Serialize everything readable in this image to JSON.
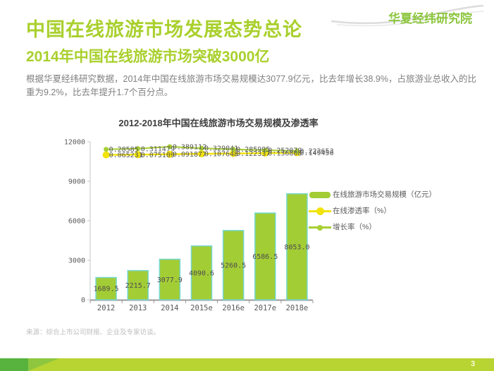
{
  "brand": {
    "logo_text": "华夏经纬研究院"
  },
  "header": {
    "title": "中国在线旅游市场发展态势总论",
    "subtitle": "2014年中国在线旅游市场突破3000亿",
    "body": "根据华夏经纬研究数据，2014年中国在线旅游市场交易规模达3077.9亿元，比去年增长38.9%，占旅游业总收入的比重为9.2%，比去年提升1.7个百分点。"
  },
  "chart_data": {
    "type": "bar",
    "title": "2012-2018年中国在线旅游市场交易规模及渗透率",
    "categories": [
      "2012",
      "2013",
      "2014",
      "2015e",
      "2016e",
      "2017e",
      "2018e"
    ],
    "series": [
      {
        "name": "在线旅游市场交易规模（亿元）",
        "type": "bar",
        "values": [
          1689.5,
          2215.7,
          3077.9,
          4090.6,
          5260.5,
          6586.5,
          8053.0
        ],
        "labels": [
          "1689.5",
          "2215.7",
          "3077.9",
          "4090.6",
          "5260.5",
          "6586.5",
          "8053.0"
        ],
        "color": "#a3cd35",
        "border_color": "#74d7cf"
      },
      {
        "name": "在线渗透率（%）",
        "type": "line",
        "values": [
          0.065231,
          0.075109,
          0.091877,
          0.107648,
          0.122337,
          0.136808,
          0.149456
        ],
        "labels": [
          "0.065231",
          "0.075109",
          "0.091877",
          "0.107648",
          "0.122337",
          "0.136808",
          "0.149456"
        ],
        "color": "#f2e30c"
      },
      {
        "name": "增长率（%）",
        "type": "line",
        "values": [
          0.28585,
          0.311479,
          0.389112,
          0.329041,
          0.285995,
          0.252079,
          0.222653
        ],
        "labels": [
          "0.28585",
          "0.311479",
          "0.389112",
          "0.329041",
          "0.285995",
          "0.252079",
          "0.222653"
        ],
        "color": "#a8cf33"
      }
    ],
    "y_axis": {
      "min": 0,
      "max": 12000,
      "ticks": [
        "0",
        "3000",
        "6000",
        "9000",
        "12000"
      ]
    },
    "grid": false,
    "legend_position": "right"
  },
  "footer": {
    "source": "来源：综合上市公司财报、企业及专家访谈。"
  },
  "page": {
    "number": "3"
  }
}
